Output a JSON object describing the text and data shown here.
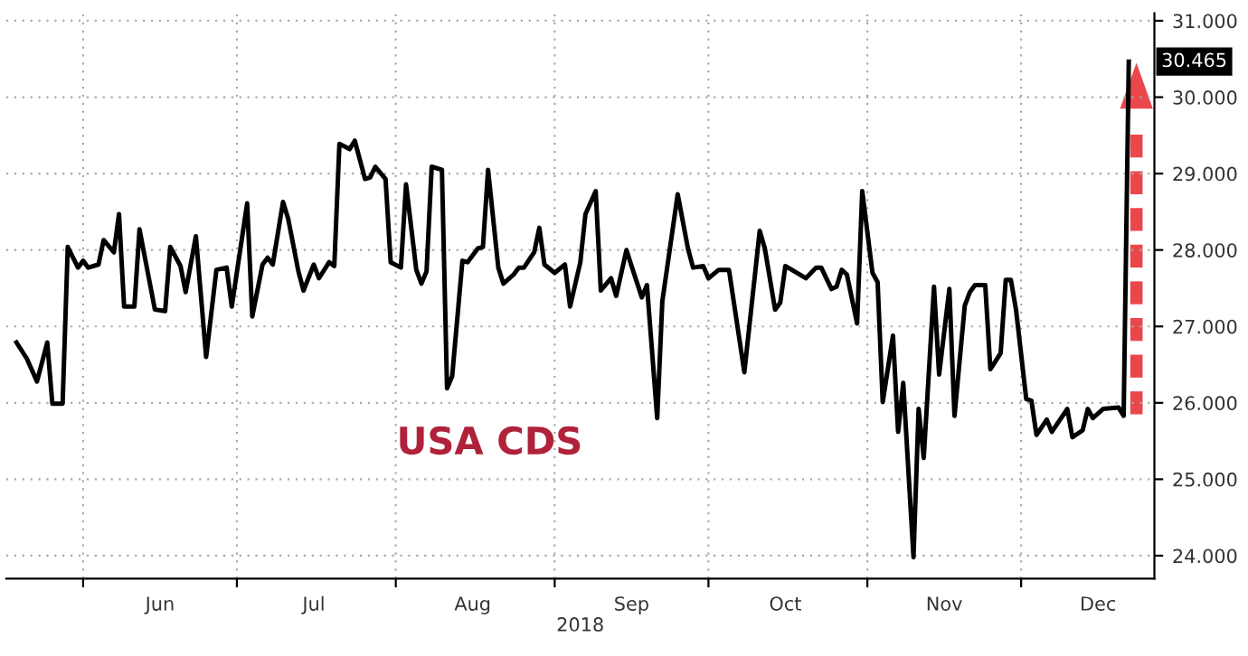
{
  "chart_data": {
    "type": "line",
    "xlabel": "2018",
    "x": [
      "2018-05-19",
      "2018-05-21",
      "2018-05-23",
      "2018-05-25",
      "2018-05-26",
      "2018-05-28",
      "2018-05-29",
      "2018-05-31",
      "2018-06-01",
      "2018-06-02",
      "2018-06-04",
      "2018-06-05",
      "2018-06-07",
      "2018-06-08",
      "2018-06-09",
      "2018-06-11",
      "2018-06-12",
      "2018-06-15",
      "2018-06-17",
      "2018-06-18",
      "2018-06-20",
      "2018-06-21",
      "2018-06-23",
      "2018-06-25",
      "2018-06-27",
      "2018-06-29",
      "2018-06-30",
      "2018-07-03",
      "2018-07-04",
      "2018-07-06",
      "2018-07-07",
      "2018-07-08",
      "2018-07-10",
      "2018-07-11",
      "2018-07-13",
      "2018-07-14",
      "2018-07-16",
      "2018-07-17",
      "2018-07-19",
      "2018-07-20",
      "2018-07-21",
      "2018-07-23",
      "2018-07-24",
      "2018-07-26",
      "2018-07-27",
      "2018-07-28",
      "2018-07-30",
      "2018-07-31",
      "2018-08-02",
      "2018-08-03",
      "2018-08-05",
      "2018-08-06",
      "2018-08-07",
      "2018-08-08",
      "2018-08-10",
      "2018-08-11",
      "2018-08-12",
      "2018-08-14",
      "2018-08-15",
      "2018-08-17",
      "2018-08-18",
      "2018-08-19",
      "2018-08-21",
      "2018-08-22",
      "2018-08-24",
      "2018-08-25",
      "2018-08-26",
      "2018-08-28",
      "2018-08-29",
      "2018-08-30",
      "2018-09-01",
      "2018-09-03",
      "2018-09-04",
      "2018-09-06",
      "2018-09-07",
      "2018-09-09",
      "2018-09-10",
      "2018-09-12",
      "2018-09-13",
      "2018-09-15",
      "2018-09-16",
      "2018-09-18",
      "2018-09-19",
      "2018-09-21",
      "2018-09-22",
      "2018-09-25",
      "2018-09-27",
      "2018-09-28",
      "2018-09-30",
      "2018-10-01",
      "2018-10-03",
      "2018-10-05",
      "2018-10-08",
      "2018-10-11",
      "2018-10-12",
      "2018-10-14",
      "2018-10-15",
      "2018-10-16",
      "2018-10-20",
      "2018-10-22",
      "2018-10-23",
      "2018-10-25",
      "2018-10-26",
      "2018-10-27",
      "2018-10-28",
      "2018-10-30",
      "2018-10-31",
      "2018-11-02",
      "2018-11-03",
      "2018-11-04",
      "2018-11-06",
      "2018-11-07",
      "2018-11-08",
      "2018-11-10",
      "2018-11-11",
      "2018-11-12",
      "2018-11-14",
      "2018-11-15",
      "2018-11-17",
      "2018-11-18",
      "2018-11-20",
      "2018-11-21",
      "2018-11-22",
      "2018-11-24",
      "2018-11-25",
      "2018-11-27",
      "2018-11-28",
      "2018-11-29",
      "2018-11-30",
      "2018-12-02",
      "2018-12-03",
      "2018-12-04",
      "2018-12-06",
      "2018-12-07",
      "2018-12-10",
      "2018-12-11",
      "2018-12-13",
      "2018-12-14",
      "2018-12-15",
      "2018-12-17",
      "2018-12-20",
      "2018-12-21",
      "2018-12-22"
    ],
    "series": [
      {
        "color": "#000000",
        "values": [
          26.79,
          26.58,
          26.28,
          26.79,
          25.99,
          25.99,
          28.04,
          27.77,
          27.86,
          27.77,
          27.81,
          28.13,
          27.97,
          28.47,
          27.26,
          27.26,
          28.27,
          27.22,
          27.2,
          28.04,
          27.79,
          27.45,
          28.18,
          26.6,
          27.74,
          27.77,
          27.26,
          28.61,
          27.13,
          27.81,
          27.9,
          27.81,
          28.63,
          28.41,
          27.72,
          27.47,
          27.81,
          27.63,
          27.84,
          27.79,
          29.39,
          29.32,
          29.43,
          28.93,
          28.95,
          29.09,
          28.93,
          27.84,
          27.77,
          28.86,
          27.74,
          27.56,
          27.72,
          29.09,
          29.05,
          26.19,
          26.35,
          27.86,
          27.84,
          28.02,
          28.04,
          29.05,
          27.77,
          27.56,
          27.68,
          27.77,
          27.77,
          27.97,
          28.29,
          27.81,
          27.7,
          27.81,
          27.26,
          27.84,
          28.47,
          28.77,
          27.47,
          27.63,
          27.4,
          28.0,
          27.79,
          27.38,
          27.54,
          25.8,
          27.33,
          28.73,
          28.02,
          27.77,
          27.79,
          27.63,
          27.74,
          27.74,
          26.4,
          28.25,
          28.02,
          27.22,
          27.31,
          27.79,
          27.63,
          27.77,
          27.77,
          27.49,
          27.52,
          27.74,
          27.68,
          27.04,
          28.77,
          27.7,
          27.58,
          26.01,
          26.88,
          25.62,
          26.26,
          23.98,
          25.92,
          25.28,
          27.52,
          26.37,
          27.49,
          25.83,
          27.27,
          27.45,
          27.54,
          27.54,
          26.44,
          26.65,
          27.61,
          27.61,
          27.22,
          26.05,
          26.03,
          25.58,
          25.78,
          25.62,
          25.92,
          25.55,
          25.64,
          25.92,
          25.8,
          25.92,
          25.94,
          25.83,
          30.465
        ]
      }
    ],
    "xlim": [
      "2018-05-17",
      "2018-12-27"
    ],
    "xticks": [
      {
        "value": "2018-06-01",
        "label": null
      },
      {
        "value": "2018-07-01",
        "label": null
      },
      {
        "value": "2018-08-01",
        "label": null
      },
      {
        "value": "2018-09-01",
        "label": null
      },
      {
        "value": "2018-10-01",
        "label": null
      },
      {
        "value": "2018-11-01",
        "label": null
      },
      {
        "value": "2018-12-01",
        "label": null
      },
      {
        "value": "2018-06-16",
        "label": "Jun"
      },
      {
        "value": "2018-07-16",
        "label": "Jul"
      },
      {
        "value": "2018-08-16",
        "label": "Aug"
      },
      {
        "value": "2018-09-16",
        "label": "Sep"
      },
      {
        "value": "2018-10-16",
        "label": "Oct"
      },
      {
        "value": "2018-11-16",
        "label": "Nov"
      },
      {
        "value": "2018-12-16",
        "label": "Dec"
      }
    ],
    "ylim": [
      23.7,
      31.1
    ],
    "yticks": [
      {
        "value": 24,
        "label": "24.000"
      },
      {
        "value": 25,
        "label": "25.000"
      },
      {
        "value": 26,
        "label": "26.000"
      },
      {
        "value": 27,
        "label": "27.000"
      },
      {
        "value": 28,
        "label": "28.000"
      },
      {
        "value": 29,
        "label": "29.000"
      },
      {
        "value": 30,
        "label": "30.000"
      },
      {
        "value": 31,
        "label": "31.000"
      }
    ],
    "grid": true,
    "marker": "none",
    "line_style": "solid",
    "legend": false,
    "annotations": [
      "USA CDS",
      {
        "text": "30.465",
        "x": "2018-12-22",
        "y": 30.465
      }
    ]
  }
}
